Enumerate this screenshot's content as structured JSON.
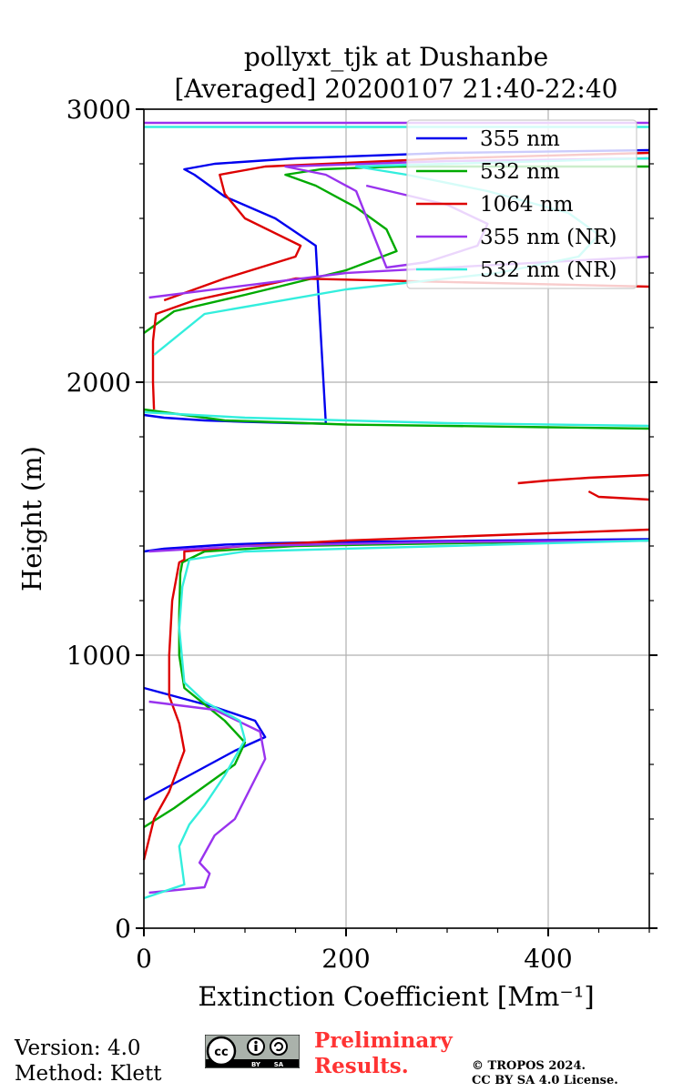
{
  "chart_data": {
    "type": "line",
    "title": [
      "pollyxt_tjk at Dushanbe",
      "[Averaged] 20200107 21:40-22:40"
    ],
    "xlabel": "Extinction Coefficient [Mm⁻¹]",
    "ylabel": "Height (m)",
    "xlim": [
      0,
      500
    ],
    "ylim": [
      0,
      3000
    ],
    "xticks": [
      0,
      200,
      400
    ],
    "yticks": [
      0,
      1000,
      2000,
      3000
    ],
    "grid": true,
    "legend_position": "top-right",
    "series": [
      {
        "name": "355 nm",
        "color": "#0000ee",
        "x": [
          0,
          30,
          60,
          90,
          120,
          110,
          70,
          30,
          10,
          0,
          null,
          0,
          20,
          40,
          60,
          80,
          120,
          200,
          350,
          500,
          null,
          0,
          20,
          60,
          100,
          150,
          180,
          170,
          130,
          80,
          50,
          40,
          70,
          150,
          300,
          500
        ],
        "y": [
          470,
          530,
          590,
          650,
          700,
          760,
          810,
          850,
          870,
          880,
          null,
          1380,
          1390,
          1395,
          1400,
          1405,
          1410,
          1415,
          1420,
          1425,
          null,
          1880,
          1870,
          1860,
          1855,
          1850,
          1848,
          2500,
          2600,
          2680,
          2760,
          2780,
          2800,
          2820,
          2840,
          2850
        ]
      },
      {
        "name": "532 nm",
        "color": "#00aa00",
        "x": [
          0,
          30,
          60,
          90,
          100,
          80,
          40,
          35,
          35,
          36,
          38,
          60,
          150,
          300,
          500,
          null,
          0,
          80,
          200,
          400,
          500,
          null,
          0,
          30,
          100,
          200,
          250,
          240,
          210,
          170,
          140,
          175,
          250,
          400,
          500
        ],
        "y": [
          370,
          440,
          520,
          600,
          680,
          760,
          880,
          1000,
          1150,
          1300,
          1340,
          1380,
          1400,
          1410,
          1420,
          null,
          1900,
          1860,
          1845,
          1835,
          1830,
          null,
          2180,
          2260,
          2320,
          2410,
          2480,
          2560,
          2640,
          2720,
          2760,
          2780,
          2790,
          2790,
          2790
        ]
      },
      {
        "name": "1064 nm",
        "color": "#dd0000",
        "x": [
          0,
          10,
          25,
          40,
          35,
          25,
          25,
          28,
          35,
          40,
          40,
          100,
          200,
          350,
          500,
          null,
          370,
          400,
          440,
          500,
          null,
          440,
          450,
          500,
          null,
          10,
          9,
          9,
          12,
          50,
          150,
          500,
          null,
          20,
          80,
          150,
          155,
          100,
          80,
          75,
          120,
          300,
          500
        ],
        "y": [
          250,
          400,
          500,
          650,
          750,
          850,
          1000,
          1200,
          1340,
          1350,
          1380,
          1400,
          1420,
          1440,
          1460,
          null,
          1630,
          1640,
          1650,
          1660,
          null,
          1600,
          1580,
          1570,
          null,
          1900,
          2000,
          2150,
          2250,
          2300,
          2380,
          2350,
          null,
          2300,
          2380,
          2460,
          2500,
          2600,
          2690,
          2760,
          2790,
          2820,
          2840
        ]
      },
      {
        "name": "355 nm (NR)",
        "color": "#9933ee",
        "x": [
          5,
          60,
          65,
          55,
          70,
          90,
          120,
          115,
          70,
          5,
          null,
          5,
          100,
          300,
          500,
          null,
          5,
          200,
          450,
          500,
          null,
          220,
          300,
          340,
          330,
          280,
          240,
          210,
          180,
          140,
          300,
          500,
          null,
          0,
          500
        ],
        "y": [
          130,
          150,
          200,
          240,
          340,
          400,
          620,
          720,
          800,
          830,
          null,
          1380,
          1400,
          1415,
          1420,
          null,
          2310,
          2400,
          2450,
          2460,
          null,
          2720,
          2650,
          2580,
          2500,
          2440,
          2420,
          2700,
          2760,
          2790,
          2810,
          2820,
          null,
          2950,
          2950
        ]
      },
      {
        "name": "532 nm (NR)",
        "color": "#33eedd",
        "x": [
          0,
          40,
          35,
          45,
          60,
          80,
          100,
          95,
          60,
          40,
          35,
          38,
          45,
          100,
          300,
          500,
          null,
          0,
          100,
          300,
          500,
          null,
          10,
          60,
          200,
          350,
          430,
          450,
          420,
          340,
          260,
          210,
          300,
          500,
          null,
          0,
          500
        ],
        "y": [
          110,
          160,
          300,
          380,
          450,
          560,
          690,
          760,
          830,
          900,
          1100,
          1250,
          1350,
          1380,
          1400,
          1420,
          null,
          1890,
          1870,
          1850,
          1840,
          null,
          2100,
          2250,
          2340,
          2400,
          2460,
          2540,
          2620,
          2700,
          2760,
          2790,
          2800,
          2820,
          null,
          2935,
          2935
        ]
      }
    ]
  },
  "footer": {
    "version_line": "Version: 4.0",
    "method_line": "Method: Klett",
    "prelim_line1": "Preliminary",
    "prelim_line2": "Results.",
    "copyright_line1": "© TROPOS 2024.",
    "copyright_line2": "CC BY SA 4.0 License.",
    "cc_badge": {
      "cc": "cc",
      "by": "BY",
      "sa": "SA"
    }
  }
}
